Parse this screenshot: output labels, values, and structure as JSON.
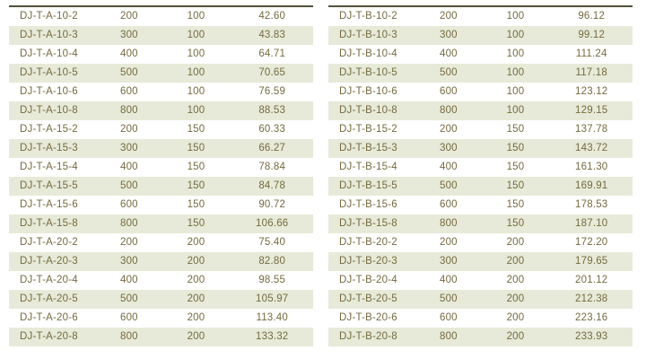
{
  "style": {
    "stripe_color": "#e7ead8",
    "text_color": "#756a3f",
    "top_border_color": "#53503c",
    "background_color": "#ffffff"
  },
  "tables": [
    {
      "name": "spec-table-dj-t-a",
      "rows": [
        [
          "DJ-T-A-10-2",
          "200",
          "100",
          "42.60"
        ],
        [
          "DJ-T-A-10-3",
          "300",
          "100",
          "43.83"
        ],
        [
          "DJ-T-A-10-4",
          "400",
          "100",
          "64.71"
        ],
        [
          "DJ-T-A-10-5",
          "500",
          "100",
          "70.65"
        ],
        [
          "DJ-T-A-10-6",
          "600",
          "100",
          "76.59"
        ],
        [
          "DJ-T-A-10-8",
          "800",
          "100",
          "88.53"
        ],
        [
          "DJ-T-A-15-2",
          "200",
          "150",
          "60.33"
        ],
        [
          "DJ-T-A-15-3",
          "300",
          "150",
          "66.27"
        ],
        [
          "DJ-T-A-15-4",
          "400",
          "150",
          "78.84"
        ],
        [
          "DJ-T-A-15-5",
          "500",
          "150",
          "84.78"
        ],
        [
          "DJ-T-A-15-6",
          "600",
          "150",
          "90.72"
        ],
        [
          "DJ-T-A-15-8",
          "800",
          "150",
          "106.66"
        ],
        [
          "DJ-T-A-20-2",
          "200",
          "200",
          "75.40"
        ],
        [
          "DJ-T-A-20-3",
          "300",
          "200",
          "82.80"
        ],
        [
          "DJ-T-A-20-4",
          "400",
          "200",
          "98.55"
        ],
        [
          "DJ-T-A-20-5",
          "500",
          "200",
          "105.97"
        ],
        [
          "DJ-T-A-20-6",
          "600",
          "200",
          "113.40"
        ],
        [
          "DJ-T-A-20-8",
          "800",
          "200",
          "133.32"
        ]
      ]
    },
    {
      "name": "spec-table-dj-t-b",
      "rows": [
        [
          "DJ-T-B-10-2",
          "200",
          "100",
          "96.12"
        ],
        [
          "DJ-T-B-10-3",
          "300",
          "100",
          "99.12"
        ],
        [
          "DJ-T-B-10-4",
          "400",
          "100",
          "111.24"
        ],
        [
          "DJ-T-B-10-5",
          "500",
          "100",
          "117.18"
        ],
        [
          "DJ-T-B-10-6",
          "600",
          "100",
          "123.12"
        ],
        [
          "DJ-T-B-10-8",
          "800",
          "100",
          "129.15"
        ],
        [
          "DJ-T-B-15-2",
          "200",
          "150",
          "137.78"
        ],
        [
          "DJ-T-B-15-3",
          "300",
          "150",
          "143.72"
        ],
        [
          "DJ-T-B-15-4",
          "400",
          "150",
          "161.30"
        ],
        [
          "DJ-T-B-15-5",
          "500",
          "150",
          "169.91"
        ],
        [
          "DJ-T-B-15-6",
          "600",
          "150",
          "178.53"
        ],
        [
          "DJ-T-B-15-8",
          "800",
          "150",
          "187.10"
        ],
        [
          "DJ-T-B-20-2",
          "200",
          "200",
          "172.20"
        ],
        [
          "DJ-T-B-20-3",
          "300",
          "200",
          "179.65"
        ],
        [
          "DJ-T-B-20-4",
          "400",
          "200",
          "201.12"
        ],
        [
          "DJ-T-B-20-5",
          "500",
          "200",
          "212.38"
        ],
        [
          "DJ-T-B-20-6",
          "600",
          "200",
          "223.16"
        ],
        [
          "DJ-T-B-20-8",
          "800",
          "200",
          "233.93"
        ]
      ]
    }
  ]
}
